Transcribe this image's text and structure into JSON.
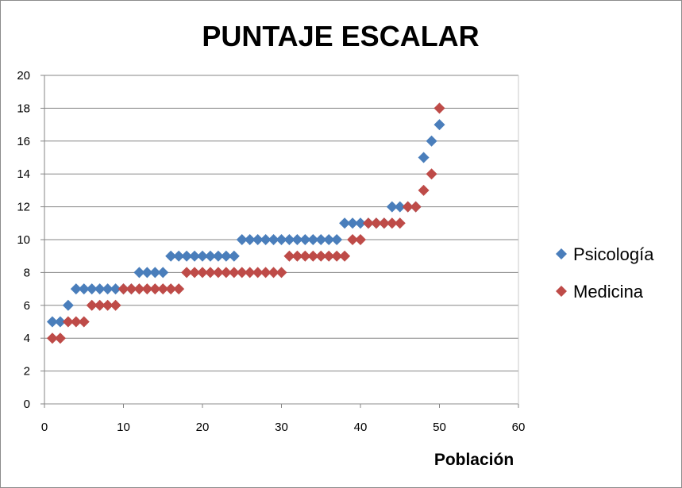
{
  "chart_data": {
    "type": "scatter",
    "title": "PUNTAJE ESCALAR",
    "xlabel": "Población",
    "ylabel": "",
    "xlim": [
      0,
      60
    ],
    "ylim": [
      0,
      20
    ],
    "xticks": [
      "0",
      "10",
      "20",
      "30",
      "40",
      "50",
      "60"
    ],
    "yticks": [
      "0",
      "2",
      "4",
      "6",
      "8",
      "10",
      "12",
      "14",
      "16",
      "18",
      "20"
    ],
    "grid": "horizontal",
    "legend_position": "right",
    "series": [
      {
        "name": "Psicología",
        "color": "#4a7ebb",
        "marker": "diamond",
        "x": [
          1,
          2,
          3,
          4,
          5,
          6,
          7,
          8,
          9,
          10,
          11,
          12,
          13,
          14,
          15,
          16,
          17,
          18,
          19,
          20,
          21,
          22,
          23,
          24,
          25,
          26,
          27,
          28,
          29,
          30,
          31,
          32,
          33,
          34,
          35,
          36,
          37,
          38,
          39,
          40,
          41,
          42,
          43,
          44,
          45,
          46,
          47,
          48,
          49,
          50
        ],
        "y": [
          5,
          5,
          6,
          7,
          7,
          7,
          7,
          7,
          7,
          7,
          7,
          8,
          8,
          8,
          8,
          9,
          9,
          9,
          9,
          9,
          9,
          9,
          9,
          9,
          10,
          10,
          10,
          10,
          10,
          10,
          10,
          10,
          10,
          10,
          10,
          10,
          10,
          11,
          11,
          11,
          11,
          11,
          11,
          12,
          12,
          12,
          12,
          15,
          16,
          17
        ]
      },
      {
        "name": "Medicina",
        "color": "#be4b48",
        "marker": "diamond",
        "x": [
          1,
          2,
          3,
          4,
          5,
          6,
          7,
          8,
          9,
          10,
          11,
          12,
          13,
          14,
          15,
          16,
          17,
          18,
          19,
          20,
          21,
          22,
          23,
          24,
          25,
          26,
          27,
          28,
          29,
          30,
          31,
          32,
          33,
          34,
          35,
          36,
          37,
          38,
          39,
          40,
          41,
          42,
          43,
          44,
          45,
          46,
          47,
          48,
          49,
          50
        ],
        "y": [
          4,
          4,
          5,
          5,
          5,
          6,
          6,
          6,
          6,
          7,
          7,
          7,
          7,
          7,
          7,
          7,
          7,
          8,
          8,
          8,
          8,
          8,
          8,
          8,
          8,
          8,
          8,
          8,
          8,
          8,
          9,
          9,
          9,
          9,
          9,
          9,
          9,
          9,
          10,
          10,
          11,
          11,
          11,
          11,
          11,
          12,
          12,
          13,
          14,
          18
        ]
      }
    ]
  }
}
